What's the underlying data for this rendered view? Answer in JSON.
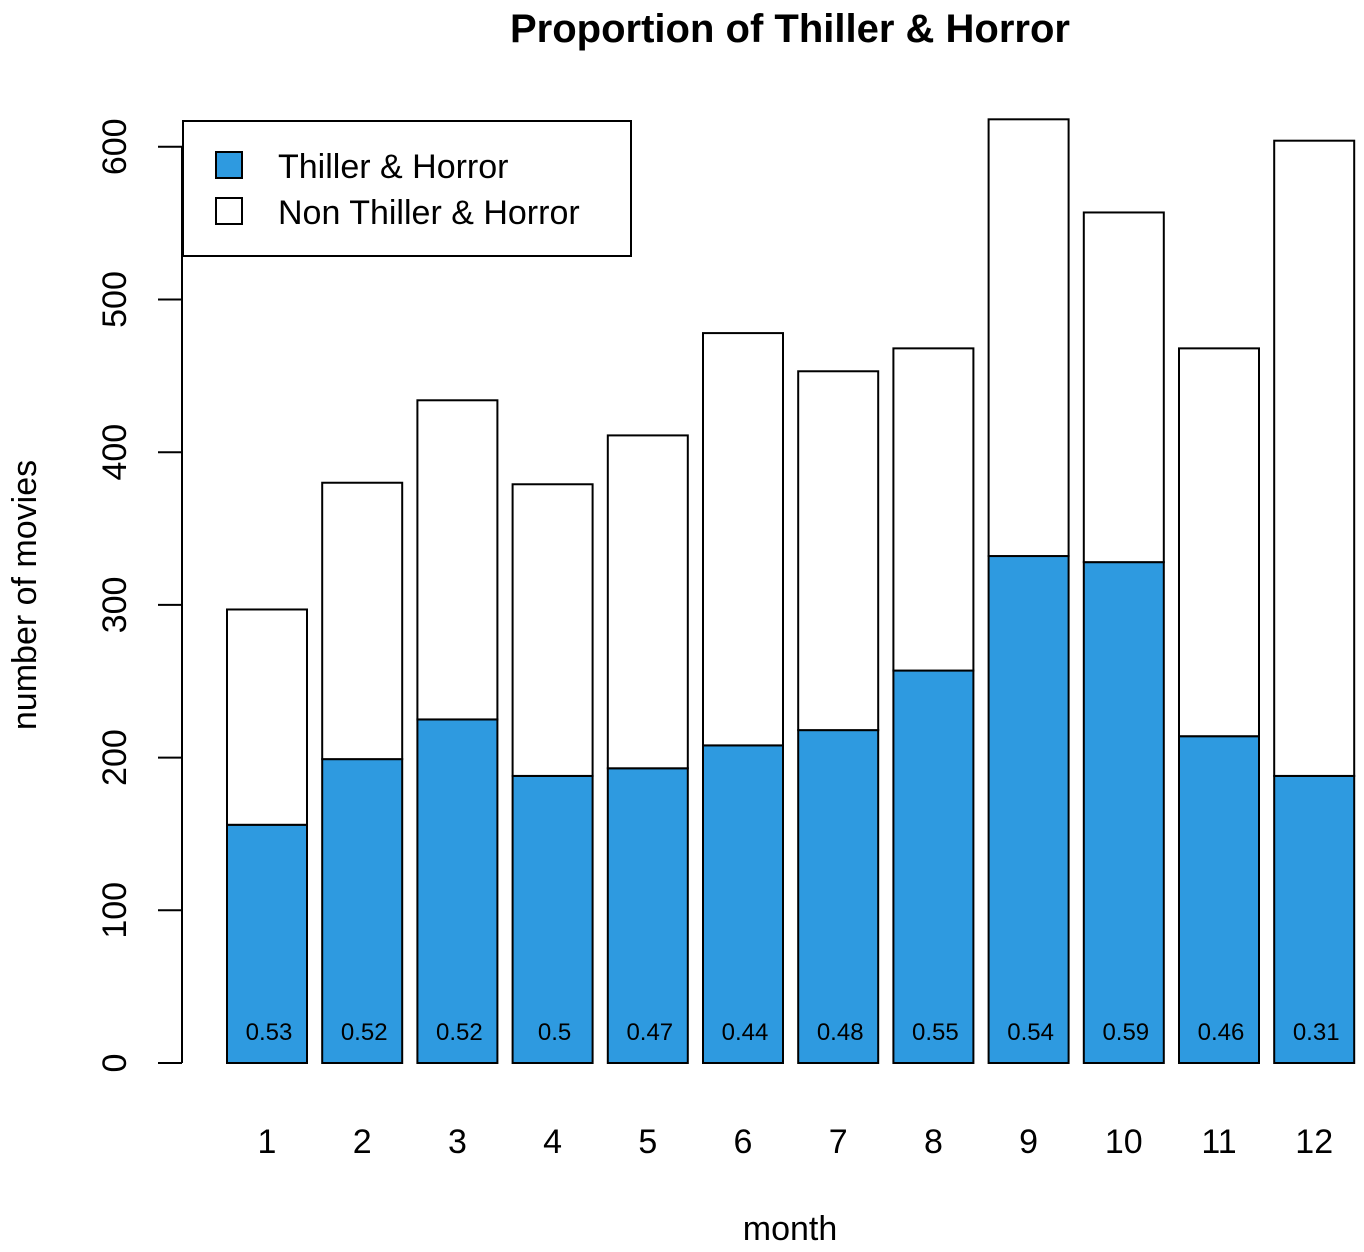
{
  "chart_data": {
    "type": "bar",
    "stacked": true,
    "title": "Proportion of Thiller & Horror",
    "xlabel": "month",
    "ylabel": "number of movies",
    "categories": [
      "1",
      "2",
      "3",
      "4",
      "5",
      "6",
      "7",
      "8",
      "9",
      "10",
      "11",
      "12"
    ],
    "series": [
      {
        "name": "Thiller & Horror",
        "color": "#2e9ae0",
        "values": [
          156,
          199,
          225,
          188,
          193,
          208,
          218,
          257,
          332,
          328,
          214,
          188
        ]
      },
      {
        "name": "Non Thiller & Horror",
        "color": "#ffffff",
        "values": [
          141,
          181,
          209,
          191,
          218,
          270,
          235,
          211,
          286,
          229,
          254,
          416
        ]
      }
    ],
    "bar_labels": [
      "0.53",
      "0.52",
      "0.52",
      "0.5",
      "0.47",
      "0.44",
      "0.48",
      "0.55",
      "0.54",
      "0.59",
      "0.46",
      "0.31"
    ],
    "yticks": [
      0,
      100,
      200,
      300,
      400,
      500,
      600
    ],
    "ylim": [
      0,
      620
    ],
    "grid": false,
    "legend_position": "top-left"
  }
}
